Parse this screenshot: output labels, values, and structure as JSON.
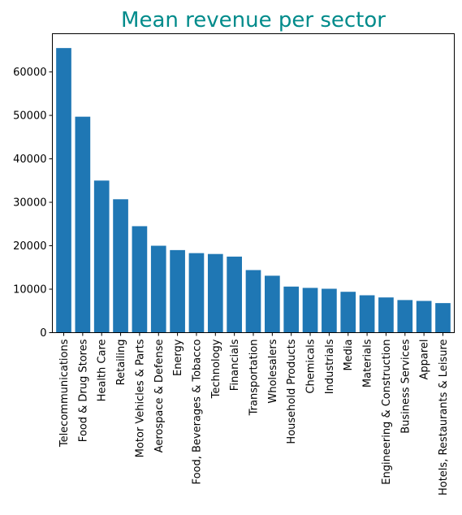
{
  "colors": {
    "title": "#008b8b",
    "bar": "#1f77b4",
    "axis": "#000000"
  },
  "chart_data": {
    "type": "bar",
    "title": "Mean revenue per sector",
    "xlabel": "",
    "ylabel": "",
    "categories": [
      "Telecommunications",
      "Food & Drug Stores",
      "Health Care",
      "Retailing",
      "Motor Vehicles & Parts",
      "Aerospace & Defense",
      "Energy",
      "Food, Beverages & Tobacco",
      "Technology",
      "Financials",
      "Transportation",
      "Wholesalers",
      "Household Products",
      "Chemicals",
      "Industrials",
      "Media",
      "Materials",
      "Engineering & Construction",
      "Business Services",
      "Apparel",
      "Hotels, Restaurants & Leisure"
    ],
    "values": [
      65500,
      49700,
      35000,
      30700,
      24500,
      20000,
      19000,
      18300,
      18100,
      17500,
      14400,
      13100,
      10600,
      10300,
      10100,
      9400,
      8600,
      8100,
      7500,
      7300,
      6800
    ],
    "ylim": [
      0,
      68800
    ],
    "yticks": [
      0,
      10000,
      20000,
      30000,
      40000,
      50000,
      60000
    ],
    "grid": false,
    "legend": "none"
  }
}
